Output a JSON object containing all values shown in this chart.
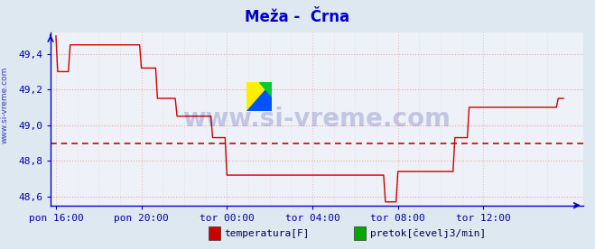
{
  "title": "Meža -  Črna",
  "title_color": "#0000cc",
  "title_fontsize": 12,
  "bg_color": "#dde8f0",
  "plot_bg_color": "#eef2f8",
  "grid_color_h": "#e8a0a0",
  "grid_color_v": "#e8c0c0",
  "axis_color": "#0000cc",
  "tick_color": "#0000aa",
  "watermark_text": "www.si-vreme.com",
  "watermark_color": "#000088",
  "watermark_alpha": 0.18,
  "watermark_fontsize": 20,
  "ylim": [
    48.55,
    49.52
  ],
  "yticks": [
    48.6,
    48.8,
    49.0,
    49.2,
    49.4
  ],
  "ytick_labels": [
    "48,6",
    "48,8",
    "49,0",
    "49,2",
    "49,4"
  ],
  "xtick_labels": [
    "pon 16:00",
    "pon 20:00",
    "tor 00:00",
    "tor 04:00",
    "tor 08:00",
    "tor 12:00"
  ],
  "xtick_positions": [
    0,
    48,
    96,
    144,
    192,
    240
  ],
  "total_points": 288,
  "line_color": "#cc0000",
  "line_width": 1.0,
  "hline_value": 48.895,
  "hline_color": "#cc0000",
  "legend_items": [
    {
      "label": "temperatura[F]",
      "color": "#cc0000"
    },
    {
      "label": "pretok[čevelj3/min]",
      "color": "#00aa00"
    }
  ],
  "data_y": [
    49.5,
    49.3,
    49.3,
    49.3,
    49.3,
    49.3,
    49.3,
    49.3,
    49.45,
    49.45,
    49.45,
    49.45,
    49.45,
    49.45,
    49.45,
    49.45,
    49.45,
    49.45,
    49.45,
    49.45,
    49.45,
    49.45,
    49.45,
    49.45,
    49.45,
    49.45,
    49.45,
    49.45,
    49.45,
    49.45,
    49.45,
    49.45,
    49.45,
    49.45,
    49.45,
    49.45,
    49.45,
    49.45,
    49.45,
    49.45,
    49.45,
    49.45,
    49.45,
    49.45,
    49.45,
    49.45,
    49.45,
    49.45,
    49.32,
    49.32,
    49.32,
    49.32,
    49.32,
    49.32,
    49.32,
    49.32,
    49.32,
    49.15,
    49.15,
    49.15,
    49.15,
    49.15,
    49.15,
    49.15,
    49.15,
    49.15,
    49.15,
    49.15,
    49.05,
    49.05,
    49.05,
    49.05,
    49.05,
    49.05,
    49.05,
    49.05,
    49.05,
    49.05,
    49.05,
    49.05,
    49.05,
    49.05,
    49.05,
    49.05,
    49.05,
    49.05,
    49.05,
    49.05,
    48.93,
    48.93,
    48.93,
    48.93,
    48.93,
    48.93,
    48.93,
    48.93,
    48.72,
    48.72,
    48.72,
    48.72,
    48.72,
    48.72,
    48.72,
    48.72,
    48.72,
    48.72,
    48.72,
    48.72,
    48.72,
    48.72,
    48.72,
    48.72,
    48.72,
    48.72,
    48.72,
    48.72,
    48.72,
    48.72,
    48.72,
    48.72,
    48.72,
    48.72,
    48.72,
    48.72,
    48.72,
    48.72,
    48.72,
    48.72,
    48.72,
    48.72,
    48.72,
    48.72,
    48.72,
    48.72,
    48.72,
    48.72,
    48.72,
    48.72,
    48.72,
    48.72,
    48.72,
    48.72,
    48.72,
    48.72,
    48.72,
    48.72,
    48.72,
    48.72,
    48.72,
    48.72,
    48.72,
    48.72,
    48.72,
    48.72,
    48.72,
    48.72,
    48.72,
    48.72,
    48.72,
    48.72,
    48.72,
    48.72,
    48.72,
    48.72,
    48.72,
    48.72,
    48.72,
    48.72,
    48.72,
    48.72,
    48.72,
    48.72,
    48.72,
    48.72,
    48.72,
    48.72,
    48.72,
    48.72,
    48.72,
    48.72,
    48.72,
    48.72,
    48.72,
    48.72,
    48.72,
    48.57,
    48.57,
    48.57,
    48.57,
    48.57,
    48.57,
    48.57,
    48.74,
    48.74,
    48.74,
    48.74,
    48.74,
    48.74,
    48.74,
    48.74,
    48.74,
    48.74,
    48.74,
    48.74,
    48.74,
    48.74,
    48.74,
    48.74,
    48.74,
    48.74,
    48.74,
    48.74,
    48.74,
    48.74,
    48.74,
    48.74,
    48.74,
    48.74,
    48.74,
    48.74,
    48.74,
    48.74,
    48.74,
    48.74,
    48.93,
    48.93,
    48.93,
    48.93,
    48.93,
    48.93,
    48.93,
    48.93,
    49.1,
    49.1,
    49.1,
    49.1,
    49.1,
    49.1,
    49.1,
    49.1,
    49.1,
    49.1,
    49.1,
    49.1,
    49.1,
    49.1,
    49.1,
    49.1,
    49.1,
    49.1,
    49.1,
    49.1,
    49.1,
    49.1,
    49.1,
    49.1,
    49.1,
    49.1,
    49.1,
    49.1,
    49.1,
    49.1,
    49.1,
    49.1,
    49.1,
    49.1,
    49.1,
    49.1,
    49.1,
    49.1,
    49.1,
    49.1,
    49.1,
    49.1,
    49.1,
    49.1,
    49.1,
    49.1,
    49.1,
    49.1,
    49.1,
    49.1,
    49.15,
    49.15,
    49.15,
    49.15
  ]
}
